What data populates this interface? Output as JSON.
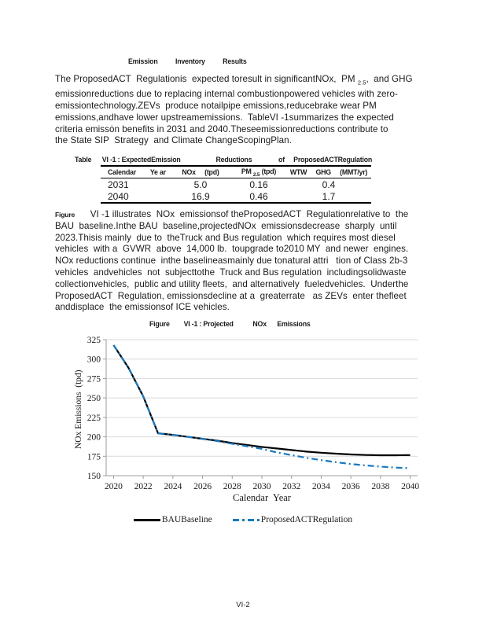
{
  "heading": "Emission          Inventory          Results",
  "intro": {
    "lines": [
      {
        "parts": [
          {
            "t": "The ProposedACT  Regulationis  expected toresult in significantNOx,  PM "
          },
          {
            "t": "2.5",
            "sub": true
          },
          {
            "t": ",  and GHG"
          }
        ]
      },
      "emissionreductions due to replacing internal combustionpowered vehicles with zero-",
      "emissiontechnology.ZEVs  produce notailpipe emissions,reducebrake wear PM",
      "emissions,andhave lower upstreamemissions.  TableVI -1summarizes the expected",
      "criteria emissȯn benefits in 2031 and 2040.Theseemissionreductions contribute to",
      "the State SIP  Strategy  and Climate ChangeScopingPlan."
    ]
  },
  "table": {
    "caption": "Table      VI -1 : ExpectedEmission                    Reductions               of     ProposedACTRegulation",
    "header": {
      "col1": "Calendar        Ye ar",
      "col2": "NOx     (tpd)",
      "col3_pm": "PM ",
      "col3_sub": "2.5",
      "col3_unit": " (tpd)",
      "col4": "WTW     GHG     (MMT/yr)"
    },
    "rows": [
      [
        "2031",
        "5.0",
        "0.16",
        "0.4"
      ],
      [
        "2040",
        "16.9",
        "0.46",
        "1.7"
      ]
    ]
  },
  "body": {
    "lines": [
      {
        "parts": [
          {
            "t": "Figure",
            "cond": true
          },
          {
            "t": "      VI -1 illustrates  NOx  emissionsof theProposedACT  Regulationrelative to  the"
          }
        ]
      },
      "BAU  baseline.Inthe BAU  baseline,projectedNOx  emissionsdecrease  sharply  until",
      "2023.Thisis mainly  due to  theTruck and Bus regulation  which requires most diesel",
      "vehicles  with a  GVWR  above  14,000 lb.  toupgrade to2010 MY  and newer  engines.",
      "NOx reductions continue  inthe baselineasmainly due tonatural attri   tion of Class 2b-3",
      "vehicles  andvehicles  not  subjecttothe  Truck and Bus regulation  includingsolidwaste",
      "collectionvehicles,  public and utility fleets,  and alternatively  fueledvehicles.  Underthe",
      "ProposedACT  Regulation, emissionsdecline at a  greaterrate   as ZEVs  enter thefleet",
      "anddisplace  the emissionsof ICE vehicles."
    ]
  },
  "figure": {
    "title": "Figure        VI -1 : Projected           NOx      Emissions"
  },
  "chart_data": {
    "type": "line",
    "title": "Figure VI-1: Projected NOx Emissions",
    "xlabel": "Calendar  Year",
    "ylabel": "NOx Emissions  (tpd)",
    "x": [
      2020,
      2021,
      2022,
      2023,
      2024,
      2025,
      2026,
      2027,
      2028,
      2029,
      2030,
      2031,
      2032,
      2033,
      2034,
      2035,
      2036,
      2037,
      2038,
      2039,
      2040
    ],
    "series": [
      {
        "name": "BAUBaseline",
        "color": "#000000",
        "style": "solid",
        "values": [
          318,
          289,
          252,
          204.5,
          202.5,
          200,
          197.5,
          195,
          192,
          189.5,
          187,
          185,
          183,
          181,
          179.5,
          178.3,
          177.3,
          176.6,
          176.3,
          176.3,
          176.5
        ]
      },
      {
        "name": "ProposedACTRegulation",
        "color": "#1878BE",
        "style": "dashdot",
        "values": [
          318,
          289,
          252,
          204.5,
          202.5,
          200,
          197.3,
          194.5,
          191,
          187.8,
          184.5,
          180,
          176.5,
          173,
          170,
          167.3,
          165,
          163.2,
          161.7,
          160.4,
          159.6
        ]
      }
    ],
    "ylim": [
      150,
      325
    ],
    "yticks": [
      150,
      175,
      200,
      225,
      250,
      275,
      300,
      325
    ],
    "xticks": [
      2020,
      2022,
      2024,
      2026,
      2028,
      2030,
      2032,
      2034,
      2036,
      2038,
      2040
    ],
    "grid": true,
    "legend_position": "bottom"
  },
  "legend": {
    "items": [
      "BAUBaseline",
      "ProposedACTRegulation"
    ]
  },
  "footer": {
    "page_number": "VI-2"
  }
}
